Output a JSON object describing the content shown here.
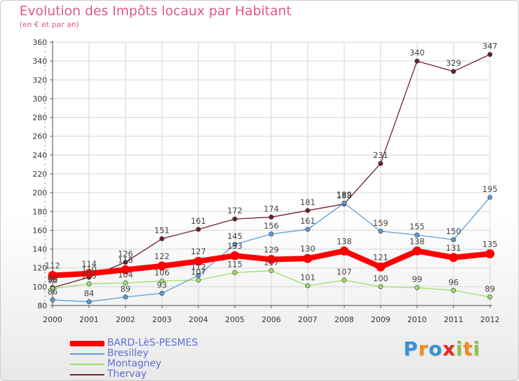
{
  "chart_data": {
    "type": "line",
    "title": "Evolution des Impôts locaux par Habitant",
    "subtitle": "(en € et par an)",
    "categories": [
      "2000",
      "2001",
      "2002",
      "2003",
      "2004",
      "2005",
      "2006",
      "2007",
      "2008",
      "2009",
      "2010",
      "2011",
      "2012"
    ],
    "ylim": [
      80,
      360
    ],
    "yticks": [
      80,
      100,
      120,
      140,
      160,
      180,
      200,
      220,
      240,
      260,
      280,
      300,
      320,
      340,
      360
    ],
    "series": [
      {
        "name": "BARD-LèS-PESMES",
        "color": "#ff0000",
        "values": [
          112,
          114,
          118,
          122,
          127,
          133,
          129,
          130,
          138,
          121,
          138,
          131,
          135
        ]
      },
      {
        "name": "Bresilley",
        "color": "#5b9bd5",
        "values": [
          86,
          84,
          89,
          93,
          112,
          145,
          156,
          161,
          189,
          159,
          155,
          150,
          195
        ]
      },
      {
        "name": "Montagney",
        "color": "#9be06a",
        "values": [
          98,
          103,
          104,
          106,
          107,
          115,
          117,
          101,
          107,
          100,
          99,
          96,
          89
        ]
      },
      {
        "name": "Thervay",
        "color": "#6e1e2a",
        "values": [
          99,
          110,
          126,
          151,
          161,
          172,
          174,
          181,
          188,
          231,
          340,
          329,
          347
        ]
      }
    ]
  },
  "brand": {
    "letters": [
      "P",
      "r",
      "o",
      "x",
      "i",
      "t",
      "i"
    ],
    "colors": [
      "#3a8fd8",
      "#f08a1c",
      "#3a8fd8",
      "#e8281c",
      "#8cc63f",
      "#f08a1c",
      "#8cc63f"
    ]
  }
}
